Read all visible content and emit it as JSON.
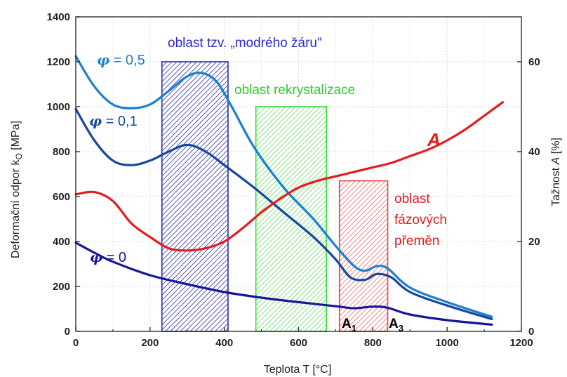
{
  "chart_data": {
    "type": "line",
    "xlabel": "Teplota T [°C]",
    "ylabel_main": "Deformační odpor k",
    "ylabel_sub": "O",
    "ylabel_unit": " [MPa]",
    "y2label_main": "Tažnost ",
    "y2label_var": "A",
    "y2label_unit": " [%]",
    "xlim": [
      0,
      1200
    ],
    "ylim": [
      0,
      1400
    ],
    "y2lim": [
      0,
      70
    ],
    "x_ticks": [
      0,
      200,
      400,
      600,
      800,
      1000,
      1200
    ],
    "y_ticks": [
      0,
      200,
      400,
      600,
      800,
      1000,
      1200,
      1400
    ],
    "y2_ticks": [
      0,
      20,
      40,
      60
    ],
    "grid": true,
    "series": [
      {
        "name": "φ = 0,5",
        "phi": "φ",
        "label_rest": " = 0,5",
        "axis": "left",
        "color": "#1a7fd1",
        "points": [
          [
            0,
            1225
          ],
          [
            50,
            1090
          ],
          [
            100,
            1010
          ],
          [
            150,
            993
          ],
          [
            200,
            1010
          ],
          [
            250,
            1070
          ],
          [
            300,
            1135
          ],
          [
            340,
            1150
          ],
          [
            380,
            1110
          ],
          [
            420,
            1000
          ],
          [
            480,
            820
          ],
          [
            560,
            640
          ],
          [
            640,
            500
          ],
          [
            700,
            380
          ],
          [
            750,
            290
          ],
          [
            780,
            270
          ],
          [
            810,
            290
          ],
          [
            840,
            280
          ],
          [
            900,
            195
          ],
          [
            1000,
            130
          ],
          [
            1120,
            65
          ]
        ]
      },
      {
        "name": "φ = 0,1",
        "phi": "φ",
        "label_rest": " = 0,1",
        "axis": "left",
        "color": "#17479e",
        "points": [
          [
            0,
            990
          ],
          [
            50,
            850
          ],
          [
            100,
            760
          ],
          [
            150,
            740
          ],
          [
            200,
            760
          ],
          [
            250,
            800
          ],
          [
            300,
            830
          ],
          [
            350,
            800
          ],
          [
            400,
            740
          ],
          [
            480,
            640
          ],
          [
            560,
            530
          ],
          [
            640,
            420
          ],
          [
            700,
            320
          ],
          [
            740,
            240
          ],
          [
            780,
            230
          ],
          [
            810,
            255
          ],
          [
            850,
            240
          ],
          [
            900,
            175
          ],
          [
            1000,
            115
          ],
          [
            1120,
            55
          ]
        ]
      },
      {
        "name": "φ = 0",
        "phi": "φ",
        "label_rest": " = 0",
        "axis": "left",
        "color": "#16169a",
        "points": [
          [
            0,
            395
          ],
          [
            50,
            350
          ],
          [
            100,
            310
          ],
          [
            200,
            250
          ],
          [
            300,
            210
          ],
          [
            400,
            175
          ],
          [
            500,
            150
          ],
          [
            600,
            130
          ],
          [
            700,
            112
          ],
          [
            750,
            103
          ],
          [
            800,
            110
          ],
          [
            840,
            105
          ],
          [
            900,
            75
          ],
          [
            1000,
            50
          ],
          [
            1120,
            30
          ]
        ]
      },
      {
        "name": "A",
        "axis": "right",
        "color": "#e41c1c",
        "points": [
          [
            0,
            30.5
          ],
          [
            50,
            31
          ],
          [
            100,
            29
          ],
          [
            150,
            24
          ],
          [
            200,
            21
          ],
          [
            250,
            18.5
          ],
          [
            300,
            18
          ],
          [
            350,
            18.5
          ],
          [
            400,
            20
          ],
          [
            450,
            23
          ],
          [
            500,
            26.5
          ],
          [
            550,
            29.5
          ],
          [
            600,
            32
          ],
          [
            650,
            33.5
          ],
          [
            700,
            34.5
          ],
          [
            750,
            35.5
          ],
          [
            800,
            36.5
          ],
          [
            850,
            37.5
          ],
          [
            900,
            39
          ],
          [
            950,
            40.5
          ],
          [
            1000,
            42.5
          ],
          [
            1050,
            45
          ],
          [
            1100,
            48
          ],
          [
            1150,
            51
          ]
        ]
      }
    ],
    "regions": [
      {
        "name": "oblast tzv. „modrého žáru\"",
        "x": [
          232,
          410
        ],
        "top": 1200,
        "color": "#2b2ba8",
        "hatch": "#2b2ba8"
      },
      {
        "name": "oblast rekrystalizace",
        "x": [
          485,
          675
        ],
        "top": 1000,
        "color": "#33dd33",
        "hatch": "#66dd66"
      },
      {
        "name": "oblast fázových přeměn",
        "x": [
          710,
          840
        ],
        "top": 670,
        "color": "#e84040",
        "hatch": "#e86a6a"
      }
    ],
    "annotations": {
      "blue_zone": "oblast tzv. „modrého žáru\"",
      "recryst": "oblast rekrystalizace",
      "phase_line1": "oblast",
      "phase_line2": "fázových",
      "phase_line3": "přeměn",
      "a1_main": "A",
      "a1_sub": "1",
      "a3_main": "A",
      "a3_sub": "3",
      "a_curve": "A"
    }
  }
}
